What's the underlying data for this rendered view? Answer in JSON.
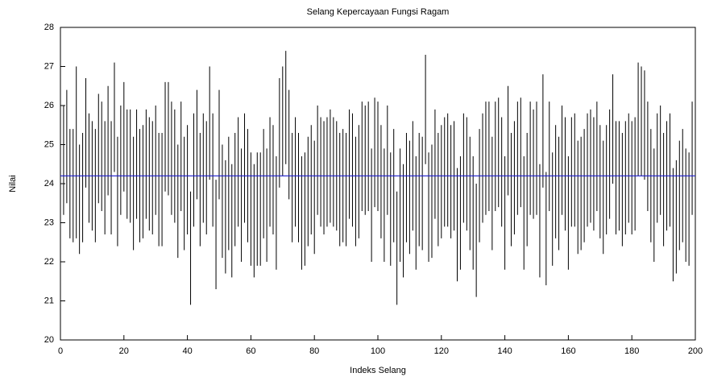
{
  "chart_data": {
    "type": "interval",
    "title": "Selang Kepercayaan Fungsi Ragam",
    "xlabel": "Indeks Selang",
    "ylabel": "Nilai",
    "color": "#000000",
    "mean": 24.2,
    "mean_color": "#1a1acc",
    "xlim": [
      0,
      200
    ],
    "xticks": [
      0,
      20,
      40,
      60,
      80,
      100,
      120,
      140,
      160,
      180,
      200
    ],
    "ylim": [
      20,
      28
    ],
    "yticks": [
      20,
      21,
      22,
      23,
      24,
      25,
      26,
      27,
      28
    ],
    "x": [
      1,
      2,
      3,
      4,
      5,
      6,
      7,
      8,
      9,
      10,
      11,
      12,
      13,
      14,
      15,
      16,
      17,
      18,
      19,
      20,
      21,
      22,
      23,
      24,
      25,
      26,
      27,
      28,
      29,
      30,
      31,
      32,
      33,
      34,
      35,
      36,
      37,
      38,
      39,
      40,
      41,
      42,
      43,
      44,
      45,
      46,
      47,
      48,
      49,
      50,
      51,
      52,
      53,
      54,
      55,
      56,
      57,
      58,
      59,
      60,
      61,
      62,
      63,
      64,
      65,
      66,
      67,
      68,
      69,
      70,
      71,
      72,
      73,
      74,
      75,
      76,
      77,
      78,
      79,
      80,
      81,
      82,
      83,
      84,
      85,
      86,
      87,
      88,
      89,
      90,
      91,
      92,
      93,
      94,
      95,
      96,
      97,
      98,
      99,
      100,
      101,
      102,
      103,
      104,
      105,
      106,
      107,
      108,
      109,
      110,
      111,
      112,
      113,
      114,
      115,
      116,
      117,
      118,
      119,
      120,
      121,
      122,
      123,
      124,
      125,
      126,
      127,
      128,
      129,
      130,
      131,
      132,
      133,
      134,
      135,
      136,
      137,
      138,
      139,
      140,
      141,
      142,
      143,
      144,
      145,
      146,
      147,
      148,
      149,
      150,
      151,
      152,
      153,
      154,
      155,
      156,
      157,
      158,
      159,
      160,
      161,
      162,
      163,
      164,
      165,
      166,
      167,
      168,
      169,
      170,
      171,
      172,
      173,
      174,
      175,
      176,
      177,
      178,
      179,
      180,
      181,
      182,
      183,
      184,
      185,
      186,
      187,
      188,
      189,
      190,
      191,
      192,
      193,
      194,
      195,
      196,
      197,
      198,
      199,
      200
    ],
    "low": [
      23.2,
      23.5,
      22.6,
      22.5,
      22.6,
      22.2,
      22.5,
      23.9,
      23.0,
      22.8,
      22.5,
      23.5,
      23.3,
      22.7,
      23.7,
      22.7,
      24.3,
      22.4,
      23.2,
      23.8,
      23.1,
      23.0,
      22.3,
      23.1,
      22.5,
      22.6,
      23.1,
      22.8,
      22.7,
      23.2,
      22.4,
      22.4,
      23.8,
      23.7,
      23.2,
      23.0,
      22.1,
      23.3,
      22.3,
      22.7,
      20.9,
      22.9,
      23.6,
      22.4,
      23.0,
      22.7,
      24.1,
      22.9,
      21.3,
      23.6,
      22.1,
      21.7,
      22.3,
      21.6,
      22.4,
      22.9,
      22.0,
      23.0,
      22.5,
      21.9,
      21.6,
      21.9,
      21.9,
      22.6,
      22.0,
      22.9,
      22.7,
      21.8,
      23.9,
      24.2,
      24.5,
      23.6,
      22.5,
      22.9,
      22.5,
      21.8,
      21.9,
      22.4,
      22.7,
      22.2,
      23.2,
      22.9,
      22.7,
      22.9,
      23.0,
      22.9,
      22.8,
      22.4,
      22.5,
      22.4,
      23.1,
      22.9,
      22.4,
      22.6,
      23.3,
      23.2,
      23.3,
      22.0,
      23.4,
      23.3,
      22.6,
      22.0,
      23.2,
      21.9,
      22.5,
      20.9,
      22.0,
      21.6,
      22.5,
      22.2,
      22.8,
      21.8,
      22.4,
      22.3,
      24.5,
      22.0,
      22.1,
      23.1,
      22.4,
      22.6,
      22.9,
      22.9,
      22.6,
      22.8,
      21.5,
      21.8,
      23.0,
      22.8,
      22.3,
      21.8,
      21.1,
      22.5,
      23.0,
      23.2,
      23.3,
      22.3,
      23.3,
      23.4,
      22.9,
      21.8,
      23.7,
      22.4,
      22.7,
      23.2,
      23.4,
      21.8,
      22.4,
      23.2,
      23.1,
      23.2,
      21.6,
      23.9,
      21.4,
      23.3,
      21.9,
      22.6,
      22.3,
      23.2,
      22.8,
      21.8,
      22.9,
      22.9,
      22.2,
      22.3,
      22.5,
      22.9,
      23.0,
      22.8,
      23.3,
      22.6,
      22.2,
      22.7,
      23.1,
      24.0,
      22.7,
      22.8,
      22.4,
      22.7,
      23.0,
      22.7,
      22.8,
      24.2,
      24.2,
      24.1,
      23.3,
      22.5,
      22.0,
      23.0,
      23.2,
      22.4,
      22.8,
      22.9,
      21.5,
      21.7,
      22.3,
      22.5,
      22.0,
      21.9,
      23.2,
      23.2
    ],
    "high": [
      26.0,
      26.4,
      25.4,
      25.4,
      27.0,
      25.0,
      25.3,
      26.7,
      25.8,
      25.6,
      25.4,
      26.3,
      26.1,
      25.6,
      26.5,
      25.6,
      27.1,
      25.2,
      26.0,
      26.6,
      25.9,
      25.9,
      25.2,
      25.9,
      25.4,
      25.5,
      25.9,
      25.7,
      25.6,
      26.0,
      25.3,
      25.3,
      26.6,
      26.6,
      26.1,
      25.9,
      25.0,
      26.1,
      25.2,
      25.5,
      23.8,
      25.8,
      26.4,
      25.3,
      25.8,
      25.6,
      27.0,
      25.8,
      24.1,
      26.4,
      25.0,
      24.6,
      25.2,
      24.5,
      25.3,
      25.7,
      24.9,
      25.8,
      25.4,
      24.8,
      24.5,
      24.8,
      24.8,
      25.4,
      24.9,
      25.7,
      25.5,
      24.7,
      26.7,
      27.0,
      27.4,
      26.4,
      25.3,
      25.7,
      25.3,
      24.7,
      24.8,
      25.2,
      25.5,
      25.1,
      26.0,
      25.7,
      25.6,
      25.7,
      25.9,
      25.7,
      25.6,
      25.3,
      25.4,
      25.3,
      25.9,
      25.8,
      25.2,
      25.5,
      26.1,
      26.0,
      26.1,
      24.9,
      26.2,
      26.1,
      25.5,
      24.9,
      26.0,
      24.8,
      25.4,
      23.8,
      24.9,
      24.5,
      25.3,
      25.1,
      25.6,
      24.7,
      25.3,
      25.2,
      27.3,
      24.8,
      25.0,
      25.9,
      25.3,
      25.5,
      25.7,
      25.8,
      25.5,
      25.6,
      24.4,
      24.7,
      25.8,
      25.7,
      25.2,
      24.7,
      24.0,
      25.4,
      25.8,
      26.1,
      26.1,
      25.2,
      26.1,
      26.2,
      25.7,
      24.7,
      26.5,
      25.3,
      25.6,
      26.1,
      26.2,
      24.7,
      25.3,
      26.1,
      25.9,
      26.1,
      24.5,
      26.8,
      24.3,
      26.1,
      24.8,
      25.5,
      25.2,
      26.0,
      25.7,
      24.7,
      25.7,
      25.8,
      25.1,
      25.2,
      25.4,
      25.8,
      25.9,
      25.7,
      26.1,
      25.5,
      25.1,
      25.5,
      25.9,
      26.8,
      25.6,
      25.6,
      25.3,
      25.6,
      25.8,
      25.6,
      25.7,
      27.1,
      27.0,
      26.9,
      26.1,
      25.4,
      24.9,
      25.8,
      26.0,
      25.3,
      25.6,
      25.8,
      24.4,
      24.6,
      25.1,
      25.4,
      24.9,
      24.8,
      26.1,
      26.1
    ]
  }
}
